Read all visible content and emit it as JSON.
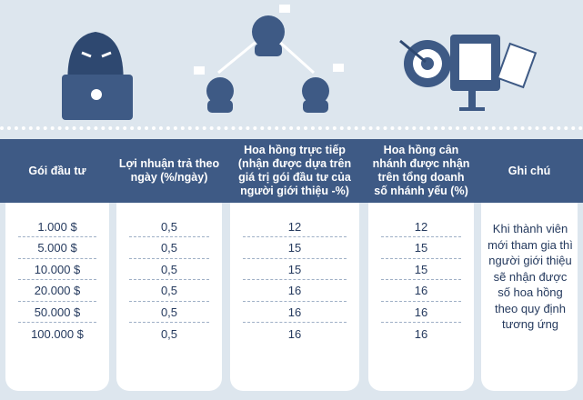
{
  "table": {
    "headers": [
      "Gói đầu tư",
      "Lợi nhuận trả theo ngày (%/ngày)",
      "Hoa hồng trực tiếp (nhận được dựa trên giá trị gói đầu tư của người giới thiệu -%)",
      "Hoa hồng cân nhánh được nhận trên tổng doanh số nhánh yếu (%)",
      "Ghi chú"
    ],
    "rows": [
      [
        "1.000 $",
        "0,5",
        "12",
        "12"
      ],
      [
        "5.000 $",
        "0,5",
        "15",
        "15"
      ],
      [
        "10.000 $",
        "0,5",
        "15",
        "15"
      ],
      [
        "20.000 $",
        "0,5",
        "16",
        "16"
      ],
      [
        "50.000 $",
        "0,5",
        "16",
        "16"
      ],
      [
        "100.000 $",
        "0,5",
        "16",
        "16"
      ]
    ],
    "note": "Khi thành viên mới tham gia thì người giới thiệu sẽ nhận được số hoa hồng theo quy định tương ứng"
  }
}
